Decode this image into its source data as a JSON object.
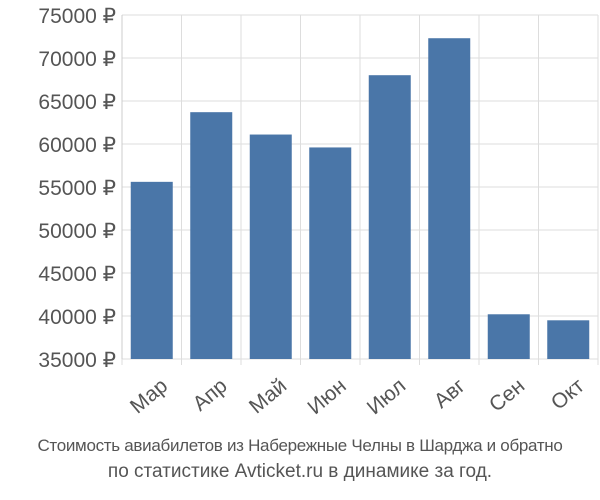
{
  "chart_data": {
    "type": "bar",
    "categories": [
      "Мар",
      "Апр",
      "Май",
      "Июн",
      "Июл",
      "Авг",
      "Сен",
      "Окт"
    ],
    "values": [
      55600,
      63700,
      61100,
      59600,
      68000,
      72300,
      40200,
      39500
    ],
    "ylim": [
      35000,
      75000
    ],
    "yticks": [
      35000,
      40000,
      45000,
      50000,
      55000,
      60000,
      65000,
      70000,
      75000
    ],
    "ytick_labels": [
      "35000 ₽",
      "40000 ₽",
      "45000 ₽",
      "50000 ₽",
      "55000 ₽",
      "60000 ₽",
      "65000 ₽",
      "70000 ₽",
      "75000 ₽"
    ],
    "grid": true,
    "bar_color": "#4a76a8",
    "grid_color": "#dddddd",
    "text_color": "#555555"
  },
  "caption": {
    "line1": "Стоимость авиабилетов из Набережные Челны в Шарджа и обратно",
    "line2": "по статистике Avticket.ru в динамике за год."
  }
}
